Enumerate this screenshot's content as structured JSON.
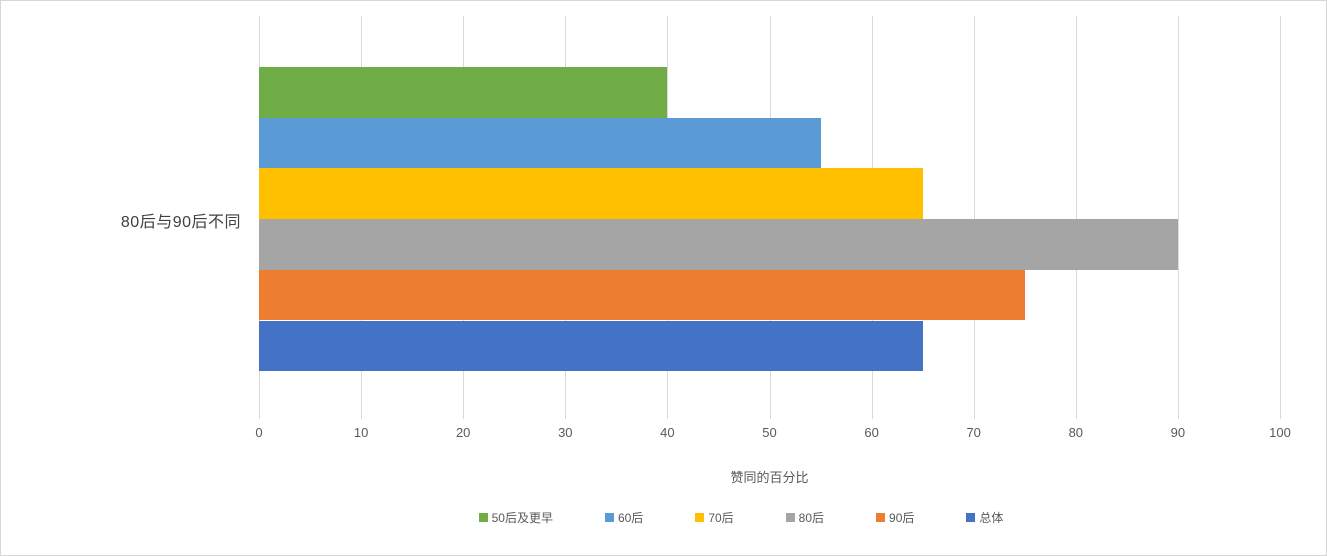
{
  "chart_data": {
    "type": "bar",
    "orientation": "horizontal",
    "title": "",
    "category": "80后与90后不同",
    "categories": [
      "80后与90后不同"
    ],
    "series": [
      {
        "name": "50后及更早",
        "values": [
          40
        ],
        "color": "#70AD47"
      },
      {
        "name": "60后",
        "values": [
          55
        ],
        "color": "#5B9BD5"
      },
      {
        "name": "70后",
        "values": [
          65
        ],
        "color": "#FFC000"
      },
      {
        "name": "80后",
        "values": [
          90
        ],
        "color": "#A5A5A5"
      },
      {
        "name": "90后",
        "values": [
          75
        ],
        "color": "#ED7D31"
      },
      {
        "name": "总体",
        "values": [
          65
        ],
        "color": "#4472C4"
      }
    ],
    "xlabel": "赞同的百分比",
    "ylabel": "",
    "xlim": [
      0,
      100
    ],
    "xticks": [
      0,
      10,
      20,
      30,
      40,
      50,
      60,
      70,
      80,
      90,
      100
    ],
    "grid": true,
    "gridline_color": "#D9D9D9",
    "legend_position": "bottom",
    "text_color": "#595959",
    "category_label_color": "#404040"
  }
}
